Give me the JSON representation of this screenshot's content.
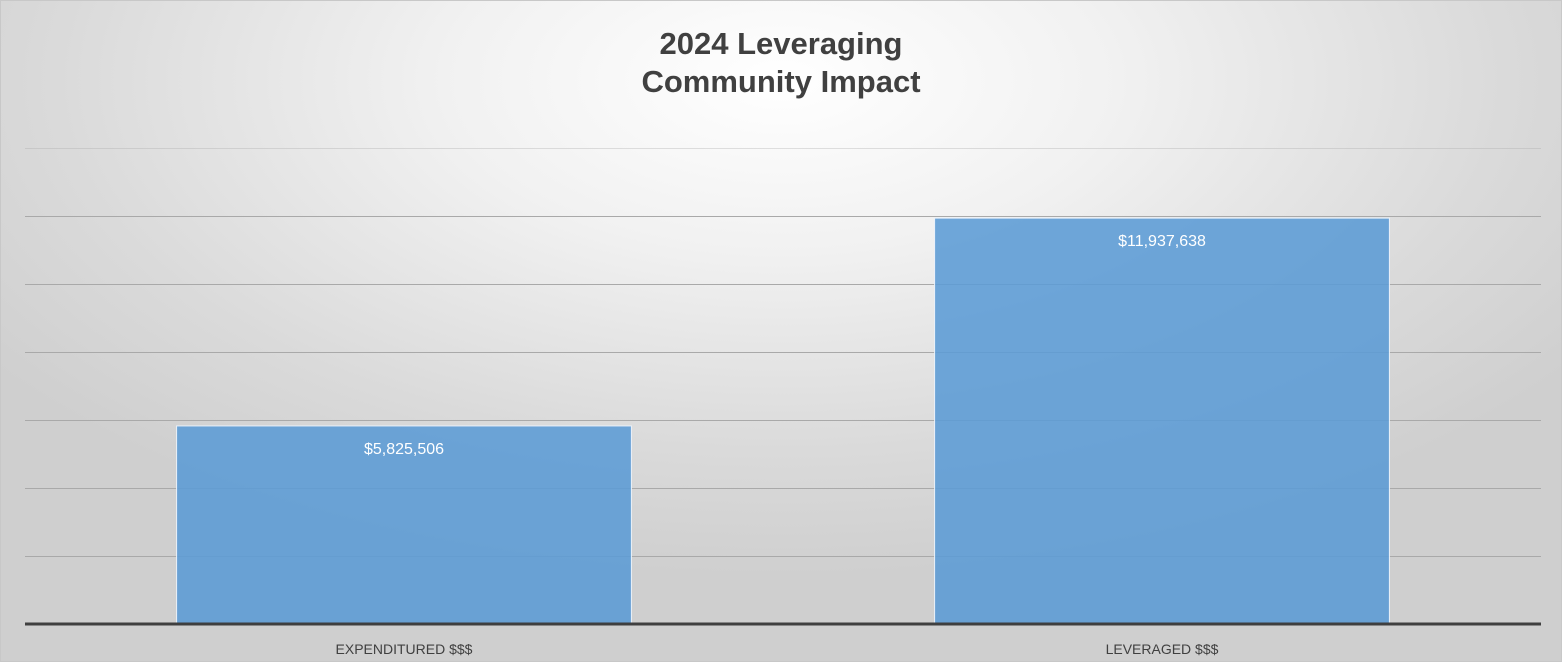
{
  "chart_data": {
    "type": "bar",
    "title": "2024 Leveraging\nCommunity Impact",
    "categories": [
      "EXPENDITURED $$$",
      "LEVERAGED $$$"
    ],
    "values": [
      5825506,
      11937638
    ],
    "data_labels": [
      "$5,825,506",
      "$11,937,638"
    ],
    "ylim": [
      0,
      14000000
    ],
    "gridline_step": 2000000,
    "grid": true,
    "legend": "none",
    "bar_color": "#5b9bd5"
  }
}
